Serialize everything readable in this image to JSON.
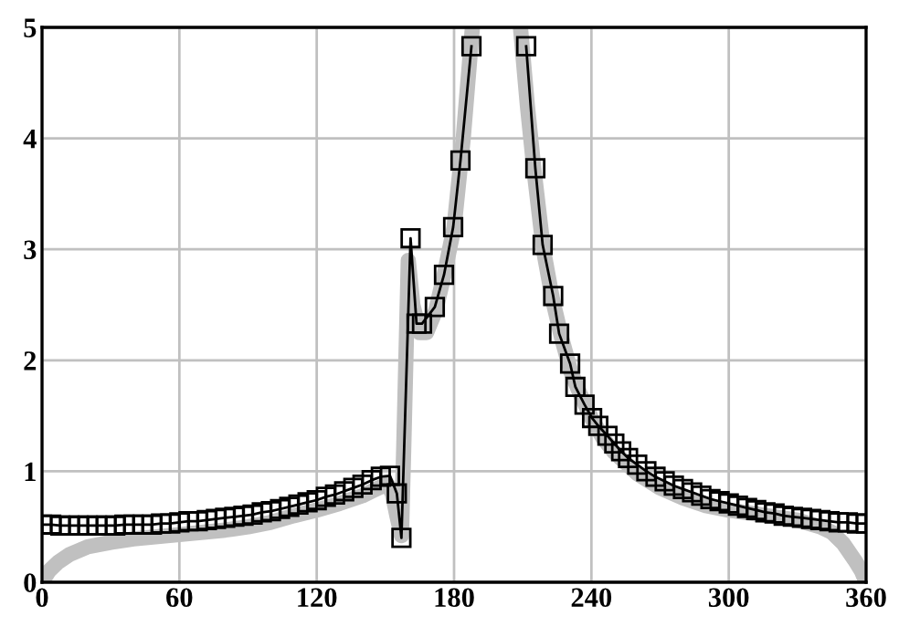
{
  "chart_data": {
    "type": "line",
    "xlim": [
      0,
      360
    ],
    "ylim": [
      0,
      5
    ],
    "xticks": [
      0,
      60,
      120,
      180,
      240,
      300,
      360
    ],
    "yticks": [
      0,
      1,
      2,
      3,
      4,
      5
    ],
    "grid": true,
    "series": [
      {
        "color": "#c0c0c0",
        "marker": "none",
        "x": [
          0,
          3,
          7,
          12,
          20,
          30,
          40,
          60,
          80,
          90,
          100,
          110,
          120,
          130,
          140,
          145,
          148,
          151,
          153,
          155,
          157,
          158,
          160,
          162,
          165,
          168,
          172,
          176,
          180,
          184,
          188,
          null,
          209,
          212,
          215,
          219,
          223,
          227,
          231,
          235,
          240,
          245,
          250,
          260,
          270,
          280,
          290,
          300,
          310,
          320,
          330,
          340,
          345,
          350,
          355,
          358,
          360
        ],
        "values": [
          0,
          0.1,
          0.18,
          0.25,
          0.32,
          0.36,
          0.39,
          0.43,
          0.47,
          0.5,
          0.54,
          0.6,
          0.65,
          0.71,
          0.78,
          0.83,
          0.86,
          0.88,
          0.8,
          0.6,
          0.42,
          1.2,
          2.9,
          2.5,
          2.25,
          2.25,
          2.45,
          2.8,
          3.2,
          4.0,
          5,
          null,
          5,
          4.3,
          3.7,
          3.0,
          2.55,
          2.2,
          1.9,
          1.7,
          1.48,
          1.3,
          1.17,
          0.98,
          0.85,
          0.76,
          0.69,
          0.65,
          0.62,
          0.59,
          0.56,
          0.5,
          0.45,
          0.35,
          0.2,
          0.1,
          0
        ]
      },
      {
        "color": "#000000",
        "marker": "square",
        "x": [
          0,
          4,
          8,
          12,
          16,
          20,
          24,
          28,
          32,
          36,
          40,
          44,
          48,
          52,
          56,
          60,
          64,
          68,
          72,
          76,
          80,
          84,
          88,
          92,
          96,
          100,
          104,
          108,
          112,
          116,
          120,
          124,
          128,
          132,
          136,
          140,
          144,
          148,
          152,
          155,
          157,
          161,
          163.6,
          166,
          171.6,
          175.6,
          179.6,
          182.8,
          187.6,
          null,
          211.5,
          215.5,
          218.7,
          223.3,
          225.9,
          230.7,
          233,
          237,
          240.3,
          243,
          247,
          250,
          253,
          256,
          260,
          264,
          268,
          272,
          276,
          280,
          284,
          288,
          292,
          296,
          300,
          304,
          308,
          312,
          316,
          320,
          324,
          328,
          332,
          336,
          340,
          344,
          348,
          352,
          356,
          360
        ],
        "values": [
          0.52,
          0.52,
          0.51,
          0.51,
          0.51,
          0.51,
          0.51,
          0.51,
          0.51,
          0.52,
          0.52,
          0.52,
          0.52,
          0.53,
          0.53,
          0.54,
          0.55,
          0.55,
          0.56,
          0.57,
          0.58,
          0.59,
          0.6,
          0.61,
          0.63,
          0.64,
          0.66,
          0.68,
          0.7,
          0.72,
          0.74,
          0.77,
          0.79,
          0.82,
          0.85,
          0.88,
          0.92,
          0.95,
          0.96,
          0.8,
          0.4,
          3.1,
          2.33,
          2.33,
          2.48,
          2.77,
          3.2,
          3.8,
          4.83,
          null,
          4.83,
          3.73,
          3.04,
          2.58,
          2.24,
          1.97,
          1.76,
          1.6,
          1.48,
          1.41,
          1.32,
          1.25,
          1.18,
          1.12,
          1.06,
          1.0,
          0.95,
          0.91,
          0.87,
          0.84,
          0.81,
          0.78,
          0.75,
          0.73,
          0.71,
          0.69,
          0.67,
          0.65,
          0.63,
          0.62,
          0.6,
          0.59,
          0.58,
          0.57,
          0.56,
          0.55,
          0.54,
          0.54,
          0.53,
          0.53
        ]
      }
    ]
  }
}
